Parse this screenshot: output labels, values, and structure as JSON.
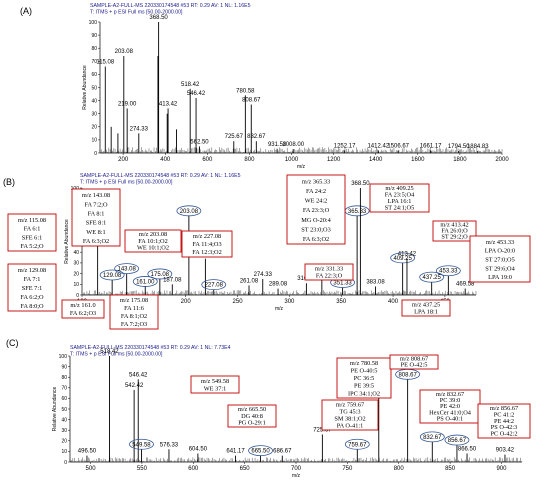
{
  "panels": [
    {
      "id": "A",
      "label": "(A)",
      "header1": "SAMPLE-A2-FULL-MS 220330174548 #53   RT: 0.29   AV: 1   NL: 1.16E5",
      "header2": "T: ITMS + p ESI Full ms [50.00-2000.00]",
      "xlabel": "m/z",
      "ylabel": "Relative Abundance",
      "xlim": [
        90,
        2000
      ],
      "ylim": [
        0,
        100
      ],
      "xticks": [
        200,
        400,
        600,
        800,
        1000,
        1200,
        1400,
        1600,
        1800,
        2000
      ],
      "yticks": [
        0,
        10,
        20,
        30,
        40,
        50,
        60,
        70,
        80,
        90,
        100
      ],
      "peaks": [
        {
          "mz": 115.08,
          "rel": 66,
          "label": "115.08"
        },
        {
          "mz": 143.08,
          "rel": 20
        },
        {
          "mz": 175.08,
          "rel": 15
        },
        {
          "mz": 203.08,
          "rel": 74,
          "label": "203.08"
        },
        {
          "mz": 219.0,
          "rel": 34,
          "label": "219.00"
        },
        {
          "mz": 274.33,
          "rel": 15,
          "label": "274.33"
        },
        {
          "mz": 365.33,
          "rel": 74
        },
        {
          "mz": 368.5,
          "rel": 100,
          "label": "368.50"
        },
        {
          "mz": 409.25,
          "rel": 30
        },
        {
          "mz": 413.42,
          "rel": 34,
          "label": "413.42"
        },
        {
          "mz": 453.33,
          "rel": 18
        },
        {
          "mz": 518.42,
          "rel": 49,
          "label": "518.42"
        },
        {
          "mz": 546.42,
          "rel": 42,
          "label": "546.42"
        },
        {
          "mz": 562.5,
          "rel": 5,
          "label": "562.50"
        },
        {
          "mz": 725.67,
          "rel": 9,
          "label": "725.67"
        },
        {
          "mz": 780.58,
          "rel": 44,
          "label": "780.58"
        },
        {
          "mz": 808.67,
          "rel": 37,
          "label": "808.67"
        },
        {
          "mz": 832.67,
          "rel": 9,
          "label": "832.67"
        },
        {
          "mz": 931.58,
          "rel": 3,
          "label": "931.58"
        },
        {
          "mz": 1008.0,
          "rel": 3,
          "label": "1008.00"
        },
        {
          "mz": 1252.17,
          "rel": 2,
          "label": "1252.17"
        },
        {
          "mz": 1412.42,
          "rel": 2,
          "label": "1412.42"
        },
        {
          "mz": 1506.67,
          "rel": 2,
          "label": "1506.67"
        },
        {
          "mz": 1661.17,
          "rel": 2,
          "label": "1661.17"
        },
        {
          "mz": 1794.5,
          "rel": 1.5,
          "label": "1794.50"
        },
        {
          "mz": 1884.83,
          "rel": 1.5,
          "label": "1884.83"
        }
      ],
      "annotations": []
    },
    {
      "id": "B",
      "label": "(B)",
      "header1": "SAMPLE-A2-FULL-MS 220330174548 #53   RT: 0.29   AV: 1   NL: 1.16E5",
      "header2": "T: ITMS + p ESI Full ms [50.00-2000.00]",
      "xlabel": "m/z",
      "ylabel": "Relative Abundance",
      "xlim": [
        100,
        480
      ],
      "ylim": [
        0,
        100
      ],
      "xticks": [
        100,
        150,
        200,
        250,
        300,
        350,
        400,
        450
      ],
      "yticks": [
        0,
        10,
        20,
        30,
        40,
        50,
        60,
        70,
        80,
        90,
        100
      ],
      "peaks": [
        {
          "mz": 115.08,
          "rel": 66,
          "label": "115.08",
          "circled": true
        },
        {
          "mz": 129.08,
          "rel": 14,
          "label": "129.08",
          "circled": true
        },
        {
          "mz": 143.08,
          "rel": 20,
          "label": "143.08",
          "circled": true
        },
        {
          "mz": 161.0,
          "rel": 8,
          "label": "161.00",
          "circled": true
        },
        {
          "mz": 175.08,
          "rel": 15,
          "label": "175.08",
          "circled": true
        },
        {
          "mz": 187.08,
          "rel": 10,
          "label": "187.08"
        },
        {
          "mz": 203.08,
          "rel": 74,
          "label": "203.08",
          "circled": true
        },
        {
          "mz": 219.0,
          "rel": 34,
          "label": "219.00"
        },
        {
          "mz": 227.08,
          "rel": 5,
          "label": "227.08",
          "circled": true
        },
        {
          "mz": 261.08,
          "rel": 9,
          "label": "261.08"
        },
        {
          "mz": 274.33,
          "rel": 15,
          "label": "274.33"
        },
        {
          "mz": 289.08,
          "rel": 6,
          "label": "289.08"
        },
        {
          "mz": 316.42,
          "rel": 11,
          "label": "316.42"
        },
        {
          "mz": 331.33,
          "rel": 20,
          "label": "331.33"
        },
        {
          "mz": 351.33,
          "rel": 7,
          "label": "351.33",
          "circled": true
        },
        {
          "mz": 365.33,
          "rel": 74,
          "label": "365.33",
          "circled": true
        },
        {
          "mz": 368.5,
          "rel": 100,
          "label": "368.50"
        },
        {
          "mz": 383.08,
          "rel": 8,
          "label": "383.08"
        },
        {
          "mz": 409.25,
          "rel": 30,
          "label": "409.25",
          "circled": true
        },
        {
          "mz": 413.42,
          "rel": 34,
          "label": "413.42"
        },
        {
          "mz": 437.25,
          "rel": 12,
          "label": "437.25",
          "circled": true
        },
        {
          "mz": 453.33,
          "rel": 18,
          "label": "453.33",
          "circled": true
        },
        {
          "mz": 469.58,
          "rel": 6,
          "label": "469.58"
        }
      ],
      "annotations": [
        {
          "lines": [
            "m/z 115.08",
            "FA 6:1",
            "SFE 6:1",
            "FA 5:2;O"
          ]
        },
        {
          "lines": [
            "m/z 129.08",
            "FA 7:1",
            "SFE 7:1",
            "FA 6:2;O",
            "FA 8:0;O"
          ]
        },
        {
          "lines": [
            "m/z 143.08",
            "FA 7:2;O",
            "FA 8:1",
            "SFE 8:1",
            "WE 8:1",
            "FA 6:3;O2"
          ]
        },
        {
          "lines": [
            "m/z 161.0",
            "FA 6:2;O3"
          ]
        },
        {
          "lines": [
            "m/z 175.08",
            "FA 11:6",
            "FA 8:1;O2",
            "FA 7:2;O3"
          ]
        },
        {
          "lines": [
            "m/z 203.08",
            "FA 10:1;O2",
            "WE 10:1;O2"
          ]
        },
        {
          "lines": [
            "m/z 227.08",
            "FA 11:4;O3",
            "FA 12:3;O2"
          ]
        },
        {
          "lines": [
            "m/z 331.33",
            "FA 22:3;O"
          ]
        },
        {
          "lines": [
            "m/z 365.33",
            "FA 24:2",
            "WE 24:2",
            "FA 23:3;O",
            "MG O-20:4",
            "ST 23:0;O3",
            "FA 6:3;O2"
          ]
        },
        {
          "lines": [
            "m/z 409.25",
            "FA 23:5;O4",
            "LPA 16:1",
            "ST 24:1;O5"
          ]
        },
        {
          "lines": [
            "m/z 413.42",
            "FA 26:0;O",
            "ST 29:2;O"
          ]
        },
        {
          "lines": [
            "m/z 437.25",
            "LPA 18:1"
          ]
        },
        {
          "lines": [
            "m/z 453.33",
            "LPA O-20:0",
            "ST 27:0;O5",
            "ST 29:6;O4",
            "LPA 19:0"
          ]
        }
      ]
    },
    {
      "id": "C",
      "label": "(C)",
      "header1": "SAMPLE-A2-FULL-MS 220330174548 #53   RT: 0.29   AV: 1   NL: 7.73E4",
      "header2": "T: ITMS + p ESI Full ms [50.00-2000.00]",
      "xlabel": "m/z",
      "ylabel": "Relative Abundance",
      "xlim": [
        480,
        920
      ],
      "ylim": [
        0,
        100
      ],
      "xticks": [
        500,
        550,
        600,
        650,
        700,
        750,
        800,
        850,
        900
      ],
      "yticks": [
        0,
        10,
        20,
        30,
        40,
        50,
        60,
        70,
        80,
        90,
        100
      ],
      "peaks": [
        {
          "mz": 496.5,
          "rel": 6,
          "label": "496.50"
        },
        {
          "mz": 518.42,
          "rel": 100,
          "label": "518.42"
        },
        {
          "mz": 542.42,
          "rel": 68,
          "label": "542.42"
        },
        {
          "mz": 546.42,
          "rel": 78,
          "label": "546.42"
        },
        {
          "mz": 549.58,
          "rel": 12,
          "label": "549.58",
          "circled": true
        },
        {
          "mz": 576.33,
          "rel": 12,
          "label": "576.33"
        },
        {
          "mz": 604.5,
          "rel": 8,
          "label": "604.50"
        },
        {
          "mz": 641.17,
          "rel": 6,
          "label": "641.17"
        },
        {
          "mz": 665.5,
          "rel": 6,
          "label": "665.50",
          "circled": true
        },
        {
          "mz": 686.67,
          "rel": 6,
          "label": "686.67"
        },
        {
          "mz": 725.67,
          "rel": 26,
          "label": "725.67"
        },
        {
          "mz": 759.67,
          "rel": 12,
          "label": "759.67",
          "circled": true
        },
        {
          "mz": 780.58,
          "rel": 87,
          "label": "780.58",
          "circled": true
        },
        {
          "mz": 808.67,
          "rel": 78,
          "label": "808.67",
          "circled": true
        },
        {
          "mz": 832.67,
          "rel": 19,
          "label": "832.67",
          "circled": true
        },
        {
          "mz": 856.67,
          "rel": 16,
          "label": "856.67",
          "circled": true
        },
        {
          "mz": 866.5,
          "rel": 8,
          "label": "866.50"
        },
        {
          "mz": 903.42,
          "rel": 7,
          "label": "903.42"
        }
      ],
      "annotations": [
        {
          "lines": [
            "m/z 549.58",
            "WE 37:1"
          ]
        },
        {
          "lines": [
            "m/z 665.50",
            "DG 40:8",
            "PG O-29:1"
          ]
        },
        {
          "lines": [
            "m/z 759.67",
            "TG 45:3",
            "SM 38:1;O2",
            "PA O-41:1"
          ]
        },
        {
          "lines": [
            "m/z 780.58",
            "PE O-40:5",
            "PC 36:5",
            "PE 39:5",
            "IPC 34:1;O2"
          ]
        },
        {
          "lines": [
            "m/z 808.67",
            "PE O-42:5"
          ]
        },
        {
          "lines": [
            "m/z 832.67",
            "PC 39:0",
            "PE 42:0",
            "HexCer 41:0;O4",
            "PS O-40:1"
          ]
        },
        {
          "lines": [
            "m/z 856.67",
            "PC 41:2",
            "PE 44:2",
            "PS O-42:3",
            "PC O-42:2"
          ]
        }
      ]
    }
  ]
}
